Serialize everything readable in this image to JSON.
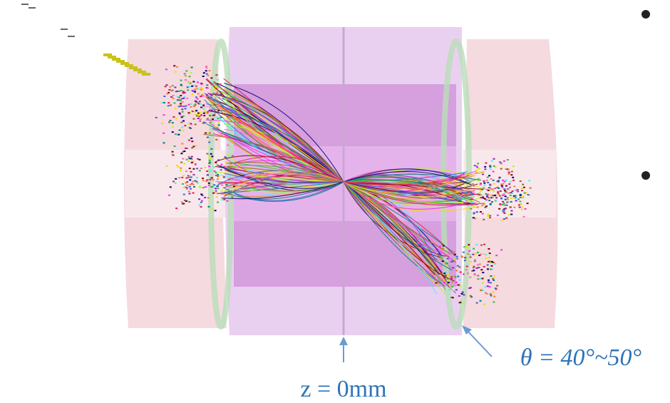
{
  "labels": {
    "z_position": "z = 0mm",
    "theta_range": "θ = 40°~50°"
  }
}
